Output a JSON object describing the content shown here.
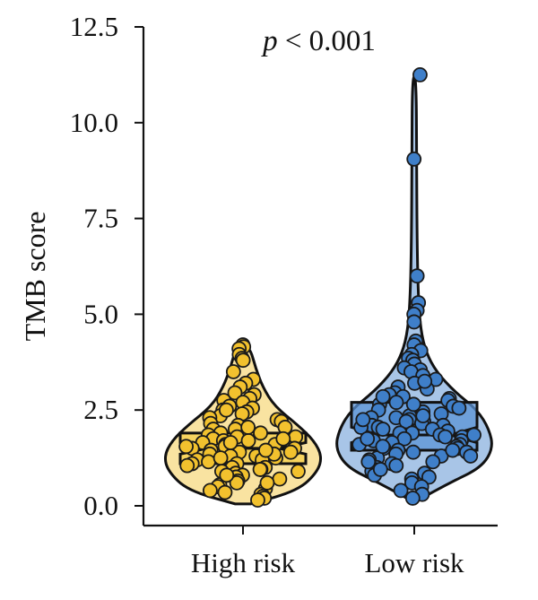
{
  "chart_data": {
    "type": "violin-box-scatter",
    "ylabel": "TMB score",
    "ylim": [
      0,
      12.5
    ],
    "yticks": [
      0.0,
      2.5,
      5.0,
      7.5,
      10.0,
      12.5
    ],
    "ytick_labels": [
      "0.0",
      "2.5",
      "5.0",
      "7.5",
      "10.0",
      "12.5"
    ],
    "annotation": {
      "p": "p",
      "rest": " < 0.001"
    },
    "categories": [
      "High risk",
      "Low risk"
    ],
    "series": [
      {
        "category": "High risk",
        "color": "#f2c12e",
        "box_color": "#f6cf4a",
        "box": {
          "q1": 1.1,
          "median": 1.5,
          "q3": 1.9,
          "notch_low": 1.35,
          "notch_high": 1.65
        },
        "points": [
          4.2,
          4.15,
          4.1,
          3.95,
          3.85,
          3.8,
          3.5,
          3.3,
          3.2,
          3.1,
          2.95,
          2.9,
          2.8,
          2.75,
          2.7,
          2.6,
          2.55,
          2.5,
          2.45,
          2.4,
          2.35,
          2.3,
          2.25,
          2.2,
          2.15,
          2.1,
          2.05,
          2.0,
          2.0,
          1.95,
          1.9,
          1.9,
          1.85,
          1.8,
          1.8,
          1.75,
          1.7,
          1.7,
          1.65,
          1.6,
          1.6,
          1.55,
          1.5,
          1.5,
          1.45,
          1.4,
          1.4,
          1.35,
          1.3,
          1.3,
          1.25,
          1.2,
          1.2,
          1.15,
          1.1,
          1.1,
          1.05,
          1.0,
          1.0,
          0.95,
          0.9,
          0.9,
          0.85,
          0.8,
          0.75,
          0.7,
          0.65,
          0.6,
          0.55,
          0.5,
          0.45,
          0.4,
          0.35,
          0.3,
          0.25,
          0.2,
          0.15,
          1.75,
          1.35,
          0.95,
          2.05,
          1.55,
          1.25,
          0.8,
          2.5,
          1.65,
          1.45,
          0.6
        ],
        "violin": [
          [
            0.05,
            0.1
          ],
          [
            0.4,
            0.7
          ],
          [
            0.9,
            0.95
          ],
          [
            1.3,
            1.0
          ],
          [
            1.7,
            0.9
          ],
          [
            2.1,
            0.7
          ],
          [
            2.6,
            0.4
          ],
          [
            3.1,
            0.25
          ],
          [
            3.6,
            0.16
          ],
          [
            4.05,
            0.1
          ],
          [
            4.2,
            0.02
          ]
        ]
      },
      {
        "category": "Low risk",
        "color": "#3f7fc9",
        "box_color": "#5b93d6",
        "box": {
          "q1": 1.45,
          "median": 1.85,
          "q3": 2.7,
          "notch_low": 1.65,
          "notch_high": 2.05
        },
        "points": [
          11.25,
          9.05,
          6.0,
          5.3,
          5.1,
          5.0,
          4.8,
          4.3,
          4.2,
          4.05,
          3.95,
          3.85,
          3.8,
          3.7,
          3.6,
          3.55,
          3.5,
          3.4,
          3.3,
          3.2,
          3.1,
          3.05,
          2.95,
          2.9,
          2.85,
          2.8,
          2.75,
          2.7,
          2.65,
          2.6,
          2.55,
          2.5,
          2.45,
          2.4,
          2.35,
          2.3,
          2.3,
          2.25,
          2.2,
          2.2,
          2.15,
          2.1,
          2.1,
          2.05,
          2.0,
          2.0,
          1.95,
          1.9,
          1.9,
          1.85,
          1.8,
          1.8,
          1.75,
          1.7,
          1.7,
          1.65,
          1.6,
          1.6,
          1.55,
          1.5,
          1.5,
          1.45,
          1.4,
          1.4,
          1.35,
          1.3,
          1.3,
          1.25,
          1.2,
          1.15,
          1.1,
          1.05,
          1.0,
          0.95,
          0.9,
          0.85,
          0.8,
          0.75,
          0.7,
          0.6,
          0.5,
          0.4,
          0.3,
          0.2,
          1.85,
          2.35,
          1.55,
          2.65,
          1.15,
          3.25,
          2.05,
          1.45,
          0.95,
          2.85,
          1.75,
          2.25
        ],
        "violin": [
          [
            0.15,
            0.05
          ],
          [
            0.6,
            0.45
          ],
          [
            1.0,
            0.85
          ],
          [
            1.5,
            1.0
          ],
          [
            2.0,
            0.95
          ],
          [
            2.5,
            0.8
          ],
          [
            3.0,
            0.5
          ],
          [
            3.5,
            0.28
          ],
          [
            4.0,
            0.15
          ],
          [
            4.6,
            0.08
          ],
          [
            5.5,
            0.05
          ],
          [
            7.0,
            0.035
          ],
          [
            9.0,
            0.03
          ],
          [
            11.2,
            0.025
          ]
        ]
      }
    ]
  }
}
